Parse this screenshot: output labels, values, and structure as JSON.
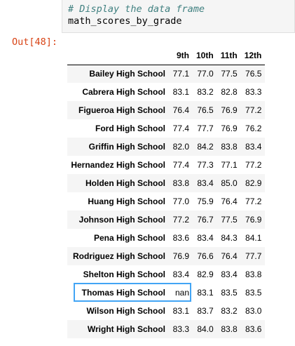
{
  "code_cell": {
    "comment": "# Display the data frame",
    "code": "math_scores_by_grade"
  },
  "output": {
    "prompt": "Out[48]:"
  },
  "table": {
    "columns": [
      "",
      "9th",
      "10th",
      "11th",
      "12th"
    ],
    "rows": [
      {
        "school": "Bailey High School",
        "values": [
          "77.1",
          "77.0",
          "77.5",
          "76.5"
        ]
      },
      {
        "school": "Cabrera High School",
        "values": [
          "83.1",
          "83.2",
          "82.8",
          "83.3"
        ]
      },
      {
        "school": "Figueroa High School",
        "values": [
          "76.4",
          "76.5",
          "76.9",
          "77.2"
        ]
      },
      {
        "school": "Ford High School",
        "values": [
          "77.4",
          "77.7",
          "76.9",
          "76.2"
        ]
      },
      {
        "school": "Griffin High School",
        "values": [
          "82.0",
          "84.2",
          "83.8",
          "83.4"
        ]
      },
      {
        "school": "Hernandez High School",
        "values": [
          "77.4",
          "77.3",
          "77.1",
          "77.2"
        ]
      },
      {
        "school": "Holden High School",
        "values": [
          "83.8",
          "83.4",
          "85.0",
          "82.9"
        ]
      },
      {
        "school": "Huang High School",
        "values": [
          "77.0",
          "75.9",
          "76.4",
          "77.2"
        ]
      },
      {
        "school": "Johnson High School",
        "values": [
          "77.2",
          "76.7",
          "77.5",
          "76.9"
        ]
      },
      {
        "school": "Pena High School",
        "values": [
          "83.6",
          "83.4",
          "84.3",
          "84.1"
        ]
      },
      {
        "school": "Rodriguez High School",
        "values": [
          "76.9",
          "76.6",
          "76.4",
          "77.7"
        ]
      },
      {
        "school": "Shelton High School",
        "values": [
          "83.4",
          "82.9",
          "83.4",
          "83.8"
        ]
      },
      {
        "school": "Thomas High School",
        "values": [
          "nan",
          "83.1",
          "83.5",
          "83.5"
        ]
      },
      {
        "school": "Wilson High School",
        "values": [
          "83.1",
          "83.7",
          "83.2",
          "83.0"
        ]
      },
      {
        "school": "Wright High School",
        "values": [
          "83.3",
          "84.0",
          "83.8",
          "83.6"
        ]
      }
    ]
  },
  "colors": {
    "prompt": "#d84315",
    "comment": "#408080",
    "selection": "#42a5f5",
    "stripe": "#f5f5f5"
  }
}
